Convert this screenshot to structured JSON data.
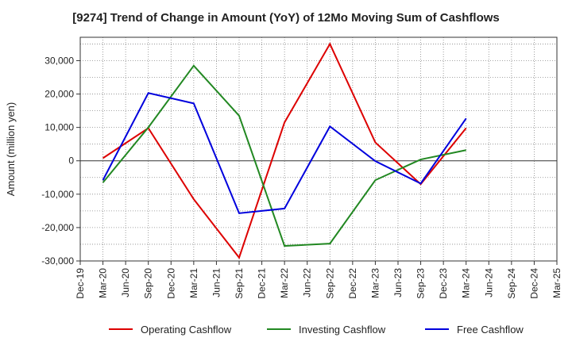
{
  "chart_data": {
    "type": "line",
    "title": "[9274]  Trend of Change in Amount (YoY) of 12Mo Moving Sum of Cashflows",
    "xlabel": "",
    "ylabel": "Amount (million yen)",
    "ylim": [
      -30000,
      37000
    ],
    "yticks": [
      -30000,
      -20000,
      -10000,
      0,
      10000,
      20000,
      30000
    ],
    "ytick_labels": [
      "-30,000",
      "-20,000",
      "-10,000",
      "0",
      "10,000",
      "20,000",
      "30,000"
    ],
    "categories": [
      "Dec-19",
      "Mar-20",
      "Jun-20",
      "Sep-20",
      "Dec-20",
      "Mar-21",
      "Jun-21",
      "Sep-21",
      "Dec-21",
      "Mar-22",
      "Jun-22",
      "Sep-22",
      "Dec-22",
      "Mar-23",
      "Jun-23",
      "Sep-23",
      "Dec-23",
      "Mar-24",
      "Jun-24",
      "Sep-24",
      "Dec-24",
      "Mar-25"
    ],
    "grid": true,
    "legend_position": "bottom",
    "series": [
      {
        "name": "Operating Cashflow",
        "color": "#dd0000",
        "values": [
          null,
          800,
          null,
          9800,
          null,
          -11500,
          null,
          -29000,
          null,
          11500,
          null,
          35000,
          null,
          5500,
          null,
          -7000,
          null,
          9800,
          null,
          null,
          null,
          null
        ]
      },
      {
        "name": "Investing Cashflow",
        "color": "#228822",
        "values": [
          null,
          -6500,
          null,
          10000,
          null,
          28500,
          null,
          13500,
          null,
          -25500,
          null,
          -24800,
          null,
          -5800,
          null,
          400,
          null,
          3200,
          null,
          null,
          null,
          null
        ]
      },
      {
        "name": "Free Cashflow",
        "color": "#0000dd",
        "values": [
          null,
          -5800,
          null,
          20300,
          null,
          17200,
          null,
          -15700,
          null,
          -14300,
          null,
          10300,
          null,
          -100,
          null,
          -6800,
          null,
          12700,
          null,
          null,
          null,
          null
        ]
      }
    ]
  }
}
